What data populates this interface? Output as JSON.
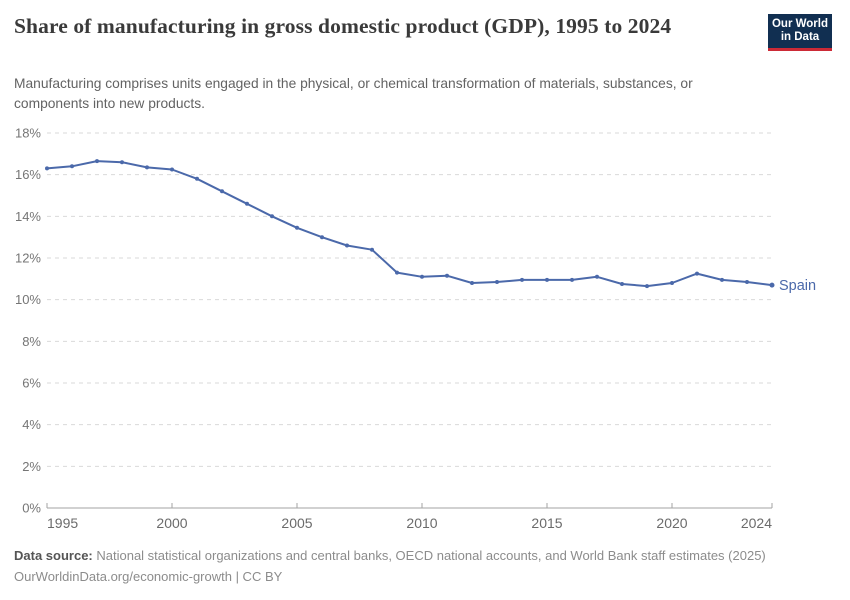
{
  "header": {
    "title": "Share of manufacturing in gross domestic product (GDP), 1995 to 2024",
    "subtitle": "Manufacturing comprises units engaged in the physical, or chemical transformation of materials, substances, or components into new products.",
    "logo_line1": "Our World",
    "logo_line2": "in Data"
  },
  "chart_data": {
    "type": "line",
    "title": "Share of manufacturing in gross domestic product (GDP), 1995 to 2024",
    "x": [
      1995,
      1996,
      1997,
      1998,
      1999,
      2000,
      2001,
      2002,
      2003,
      2004,
      2005,
      2006,
      2007,
      2008,
      2009,
      2010,
      2011,
      2012,
      2013,
      2014,
      2015,
      2016,
      2017,
      2018,
      2019,
      2020,
      2021,
      2022,
      2023,
      2024
    ],
    "series": [
      {
        "name": "Spain",
        "color": "#4B69AA",
        "values": [
          16.3,
          16.4,
          16.65,
          16.6,
          16.35,
          16.25,
          15.8,
          15.2,
          14.6,
          14.0,
          13.45,
          13.0,
          12.6,
          12.4,
          11.3,
          11.1,
          11.15,
          10.8,
          10.85,
          10.95,
          10.95,
          10.95,
          11.1,
          10.75,
          10.65,
          10.8,
          11.25,
          10.95,
          10.85,
          10.7
        ]
      }
    ],
    "end_label": "Spain",
    "x_ticks": [
      1995,
      2000,
      2005,
      2010,
      2015,
      2020,
      2024
    ],
    "y_ticks": [
      0,
      2,
      4,
      6,
      8,
      10,
      12,
      14,
      16,
      18
    ],
    "y_tick_format": "{v}%",
    "xlim": [
      1995,
      2024
    ],
    "ylim": [
      0,
      18
    ],
    "grid": "horizontal-dashed",
    "legend_position": "end-of-line",
    "xlabel": "",
    "ylabel": ""
  },
  "footer": {
    "datasource_label": "Data source:",
    "datasource_text": "National statistical organizations and central banks, OECD national accounts, and World Bank staff estimates (2025)",
    "attribution": "OurWorldinData.org/economic-growth | CC BY"
  },
  "colors": {
    "line": "#4B69AA",
    "grid": "#DADADA",
    "axis": "#A3A3A3",
    "tick_label": "#757575",
    "title": "#3A3A3A",
    "subtitle": "#636363",
    "footer": "#8C8C8C",
    "logo_bg": "#112F51",
    "logo_bar": "#CC2A36"
  }
}
